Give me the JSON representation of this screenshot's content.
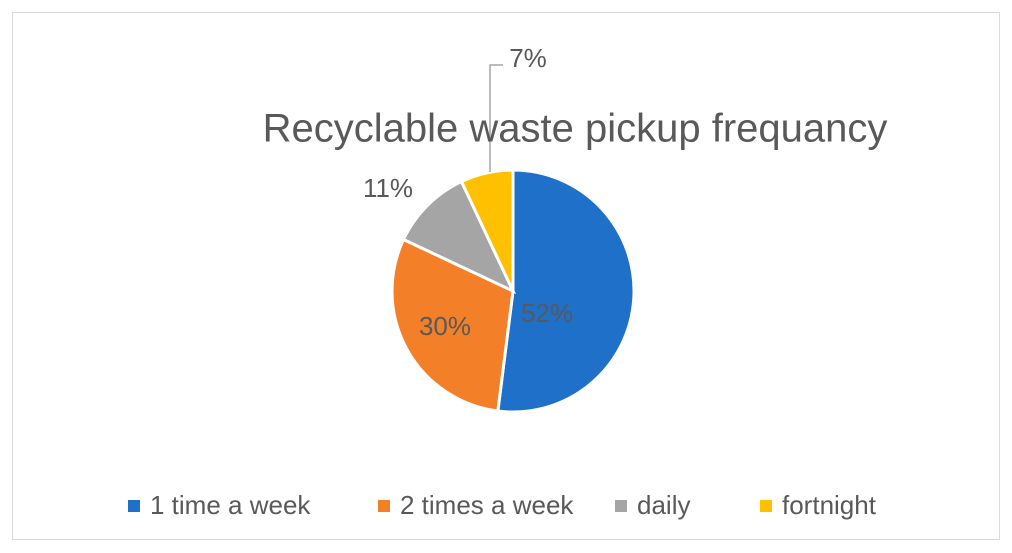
{
  "chart_data": {
    "type": "pie",
    "title": "Recyclable waste pickup frequancy",
    "categories": [
      "1 time a week",
      "2 times a week",
      "daily",
      "fortnight"
    ],
    "values": [
      52,
      30,
      11,
      7
    ],
    "value_labels": [
      "52%",
      "30%",
      "11%",
      "7%"
    ],
    "colors": [
      "#1f70c8",
      "#f47f29",
      "#a5a5a5",
      "#ffc000"
    ],
    "legend": "bottom"
  }
}
